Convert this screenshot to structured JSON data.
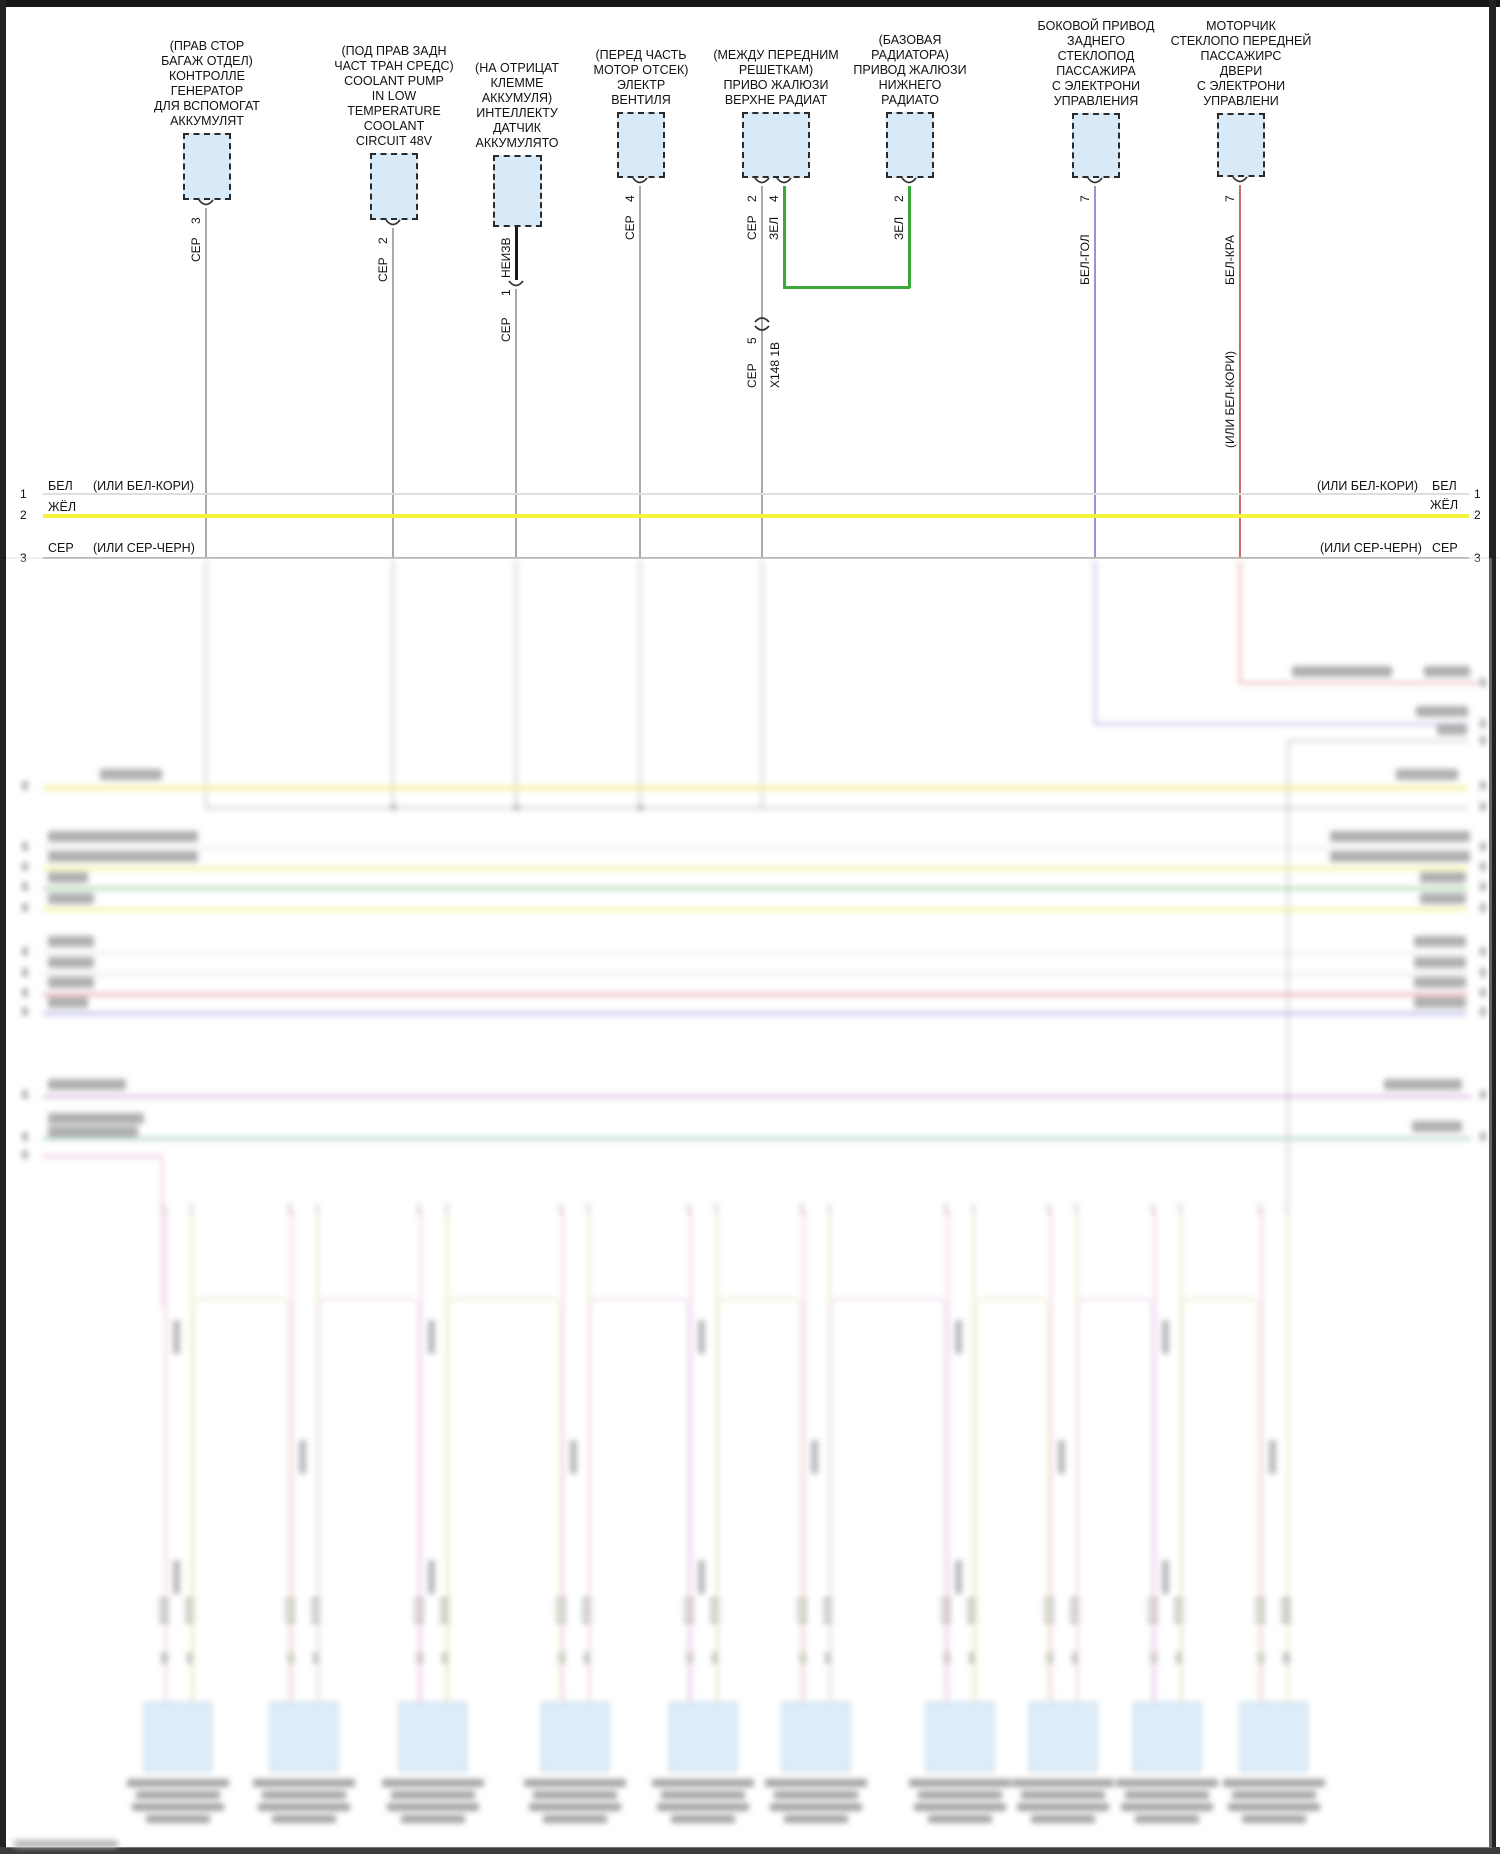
{
  "diagram_type": "automotive wiring diagram",
  "colors": {
    "component_fill": "#d8eaf8",
    "component_border": "#2a2a2a",
    "wire_gray": "#a9a9a9",
    "wire_black": "#1a1a1a",
    "wire_yellow": "#f6f33b",
    "wire_green": "#3aa83a",
    "wire_white": "#dedede",
    "wire_blue": "#9595d6",
    "wire_red": "#c96a6a",
    "blur_gray": "#b5b5b5",
    "blur_lightgray": "#d2d2d2",
    "blur_yellow": "#efec6a",
    "blur_green": "#8cc88c",
    "blur_red": "#e08888",
    "blur_blue": "#9a9ae0",
    "blur_violet": "#c9a2cc",
    "blur_teal": "#96c2ac",
    "blur_pink": "#ecb6dc",
    "loop_yellow": "#e3e3ae",
    "loop_pink": "#efc9e6",
    "blur_box_fill": "#cfe5f7",
    "blur_box_border": "#8fb2cc",
    "smudge": "#8d8d8d"
  },
  "components": [
    {
      "label": "(ПРАВ СТОР\nБАГАЖ ОТДЕЛ)\nКОНТРОЛЛЕ\nГЕНЕРАТОР\nДЛЯ ВСПОМОГАТ\nАККУМУЛЯТ",
      "pins": [
        {
          "num": "3",
          "wire": "СЕР"
        }
      ]
    },
    {
      "label": "(ПОД ПРАВ ЗАДН\nЧАСТ ТРАН СРЕДС)\nCOOLANT PUMP\nIN LOW\nTEMPERATURE\nCOOLANT\nCIRCUIT 48V",
      "pins": [
        {
          "num": "2",
          "wire": "СЕР"
        }
      ]
    },
    {
      "label": "(НА ОТРИЦАТ\nКЛЕММЕ\nАККУМУЛЯ)\nИНТЕЛЛЕКТУ\nДАТЧИК\nАККУМУЛЯТО",
      "pins": [
        {
          "num": "1",
          "wire": "СЕР",
          "pre_wire": "НЕИЗВ"
        }
      ]
    },
    {
      "label": "(ПЕРЕД ЧАСТЬ\nМОТОР ОТСЕК)\nЭЛЕКТР\nВЕНТИЛЯ",
      "pins": [
        {
          "num": "4",
          "wire": "СЕР"
        }
      ]
    },
    {
      "label": "(МЕЖДУ ПЕРЕДНИМ\nРЕШЕТКАМ)\nПРИВО ЖАЛЮЗИ\nВЕРХНЕ РАДИАТ",
      "pins": [
        {
          "num": "2",
          "wire": "СЕР"
        },
        {
          "num": "4",
          "wire": "ЗЕЛ"
        }
      ]
    },
    {
      "label": "(БАЗОВАЯ\nРАДИАТОРА)\nПРИВОД ЖАЛЮЗИ\nНИЖНЕГО\nРАДИАТО",
      "pins": [
        {
          "num": "2",
          "wire": "ЗЕЛ"
        }
      ]
    },
    {
      "label": "БОКОВОЙ ПРИВОД\nЗАДНЕГО\nСТЕКЛОПОД\nПАССАЖИРА\nС ЭЛЕКТРОНИ\nУПРАВЛЕНИЯ",
      "pins": [
        {
          "num": "7",
          "wire": "БЕЛ-ГОЛ"
        }
      ]
    },
    {
      "label": "МОТОРЧИК\nСТЕКЛОПО ПЕРЕДНЕЙ\nПАССАЖИРС\nДВЕРИ\nС ЭЛЕКТРОНИ\nУПРАВЛЕНИ",
      "pins": [
        {
          "num": "7",
          "wire": "БЕЛ-КРА",
          "alt": "(ИЛИ БЕЛ-КОРИ)"
        }
      ]
    }
  ],
  "inline_connector": {
    "pin": "5",
    "wire": "СЕР",
    "id": "X148 1В"
  },
  "bus": {
    "rows": [
      {
        "num": "1",
        "label": "БЕЛ",
        "alt": "(ИЛИ БЕЛ-КОРИ)"
      },
      {
        "num": "2",
        "label": "ЖЁЛ",
        "alt": ""
      },
      {
        "num": "3",
        "label": "СЕР",
        "alt": "(ИЛИ СЕР-ЧЕРН)"
      }
    ]
  }
}
